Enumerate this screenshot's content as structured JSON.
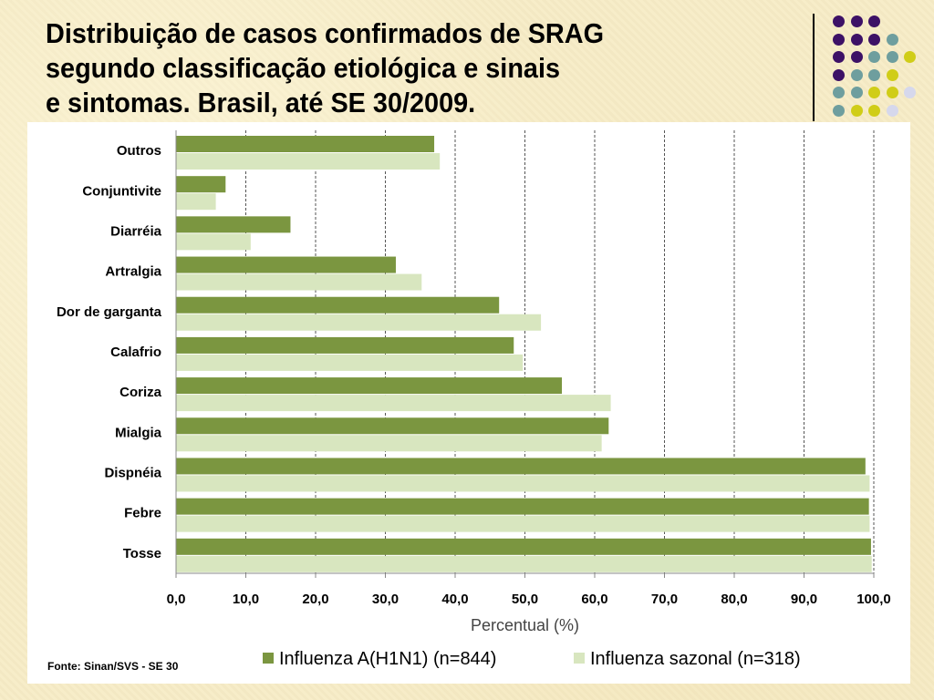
{
  "slide": {
    "title_lines": [
      "Distribuição de casos confirmados de SRAG",
      "segundo classificação etiológica e sinais",
      "e sintomas. Brasil, até SE 30/2009."
    ],
    "source": "Fonte: Sinan/SVS - SE 30"
  },
  "colors": {
    "series_a": "#7b9640",
    "series_b": "#d8e6bf",
    "grid": "#555555",
    "dot_purple": "#3d1166",
    "dot_teal": "#6e9e9e",
    "dot_yellow": "#d0cd18",
    "dot_lavender": "#d6d8ec"
  },
  "decor": {
    "dot_rows": [
      [
        "dot_purple",
        "dot_purple",
        "dot_purple"
      ],
      [
        "dot_purple",
        "dot_purple",
        "dot_purple",
        "dot_teal"
      ],
      [
        "dot_purple",
        "dot_purple",
        "dot_teal",
        "dot_teal",
        "dot_yellow"
      ],
      [
        "dot_purple",
        "dot_teal",
        "dot_teal",
        "dot_yellow"
      ],
      [
        "dot_teal",
        "dot_teal",
        "dot_yellow",
        "dot_yellow",
        "dot_lavender"
      ],
      [
        "dot_teal",
        "dot_yellow",
        "dot_yellow",
        "dot_lavender"
      ],
      [
        "dot_yellow",
        "dot_yellow",
        "dot_lavender",
        "dot_lavender"
      ]
    ]
  },
  "chart_data": {
    "type": "bar",
    "orientation": "horizontal",
    "categories": [
      "Outros",
      "Conjuntivite",
      "Diarréia",
      "Artralgia",
      "Dor de garganta",
      "Calafrio",
      "Coriza",
      "Mialgia",
      "Dispnéia",
      "Febre",
      "Tosse"
    ],
    "series": [
      {
        "name": "Influenza A(H1N1) (n=844)",
        "color_key": "series_a",
        "values": [
          37.0,
          7.1,
          16.4,
          31.5,
          46.3,
          48.4,
          55.3,
          62.0,
          98.8,
          99.3,
          99.6
        ]
      },
      {
        "name": "Influenza sazonal (n=318)",
        "color_key": "series_b",
        "values": [
          37.8,
          5.7,
          10.7,
          35.2,
          52.3,
          49.7,
          62.3,
          61.0,
          99.4,
          99.4,
          99.7
        ]
      }
    ],
    "xlabel": "Percentual (%)",
    "xlim": [
      0,
      100
    ],
    "xticks": [
      "0,0",
      "10,0",
      "20,0",
      "30,0",
      "40,0",
      "50,0",
      "60,0",
      "70,0",
      "80,0",
      "90,0",
      "100,0"
    ],
    "grid": "vertical dashed",
    "legend_position": "bottom"
  }
}
